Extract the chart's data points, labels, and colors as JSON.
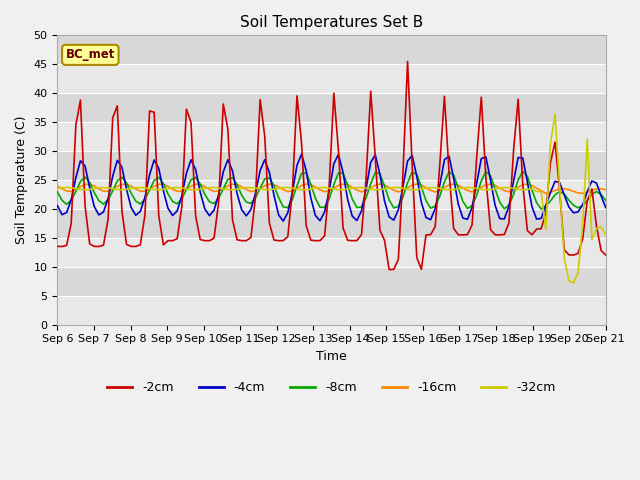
{
  "title": "Soil Temperatures Set B",
  "xlabel": "Time",
  "ylabel": "Soil Temperature (C)",
  "annotation": "BC_met",
  "ylim": [
    0,
    50
  ],
  "yticks": [
    0,
    5,
    10,
    15,
    20,
    25,
    30,
    35,
    40,
    45,
    50
  ],
  "n_days": 15,
  "start_day": 6,
  "series_colors": {
    "-2cm": "#cc0000",
    "-4cm": "#0000cc",
    "-8cm": "#00aa00",
    "-16cm": "#ff8800",
    "-32cm": "#cccc00"
  },
  "legend_labels": [
    "-2cm",
    "-4cm",
    "-8cm",
    "-16cm",
    "-32cm"
  ],
  "band_colors": [
    "#e8e8e8",
    "#d8d8d8"
  ],
  "title_fontsize": 11,
  "axis_fontsize": 9,
  "tick_fontsize": 8,
  "legend_fontsize": 9,
  "figsize": [
    6.4,
    4.8
  ],
  "dpi": 100
}
